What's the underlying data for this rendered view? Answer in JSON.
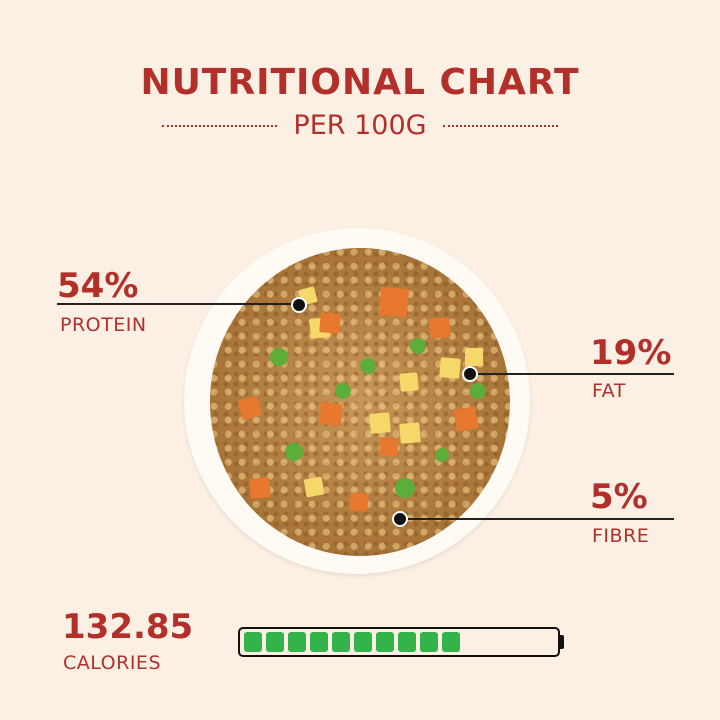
{
  "header": {
    "title": "NUTRITIONAL CHART",
    "subtitle": "PER 100G"
  },
  "nutrients": [
    {
      "value": "54%",
      "label": "PROTEIN"
    },
    {
      "value": "19%",
      "label": "FAT"
    },
    {
      "value": "5%",
      "label": "FIBRE"
    }
  ],
  "calories": {
    "value": "132.85",
    "label": "CALORIES",
    "battery_filled_segments": 10,
    "battery_total_segments": 15,
    "fill_color": "#33b44a"
  },
  "colors": {
    "accent": "#b3302a",
    "background": "#fcefe3"
  }
}
